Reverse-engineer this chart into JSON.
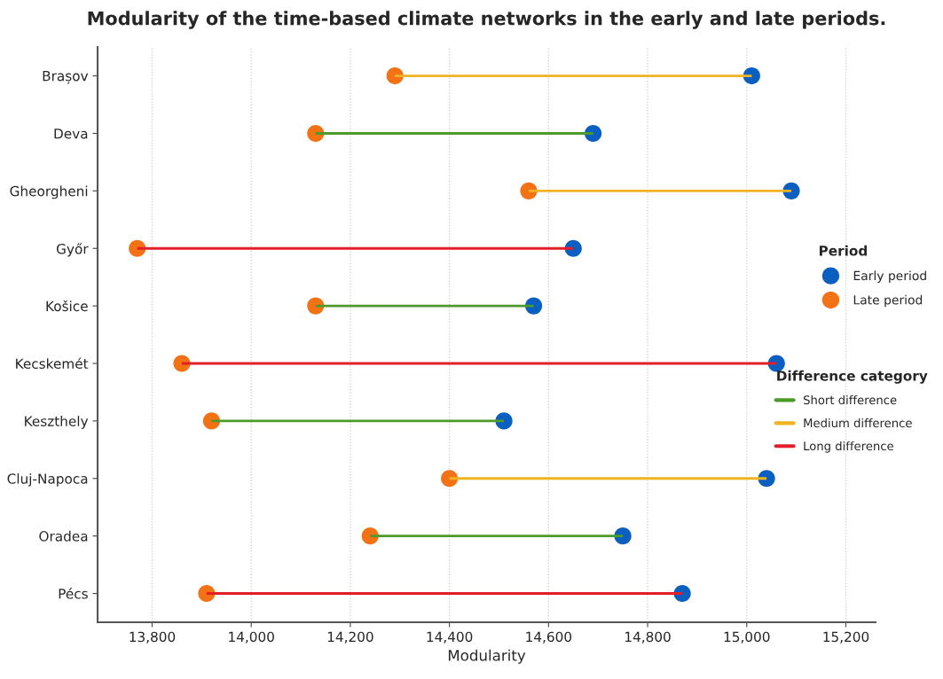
{
  "chart_data": {
    "type": "bar",
    "orientation": "horizontal",
    "title": "Modularity of the time-based climate networks in the early and late periods.",
    "xlabel": "Modularity",
    "legend_title": [
      "Period",
      "Difference category"
    ],
    "categories": [
      "Brașov",
      "Deva",
      "Gheorgheni",
      "Győr",
      "Košice",
      "Kecskemét",
      "Keszthely",
      "Cluj-Napoca",
      "Oradea",
      "Pécs"
    ],
    "series": [
      {
        "name": "Early period",
        "type": "scatter",
        "color": "#0a5fc0",
        "marker": "circle",
        "values": [
          15010,
          14690,
          15090,
          14650,
          14570,
          15060,
          14510,
          15040,
          14750,
          14870
        ]
      },
      {
        "name": "Late period",
        "type": "scatter",
        "color": "#f47216",
        "marker": "circle",
        "values": [
          14290,
          14130,
          14560,
          13770,
          14130,
          13860,
          13920,
          14400,
          14240,
          13910
        ]
      },
      {
        "name": "Short difference",
        "color": "#4c9a2a",
        "base": [
          null,
          14130,
          null,
          null,
          14130,
          null,
          13920,
          null,
          14240,
          null
        ],
        "values": [
          null,
          560,
          null,
          null,
          440,
          null,
          590,
          null,
          510,
          null
        ]
      },
      {
        "name": "Medium difference",
        "color": "#f0b323",
        "base": [
          14290,
          null,
          14560,
          null,
          null,
          null,
          null,
          14400,
          null,
          null
        ],
        "values": [
          720,
          null,
          530,
          null,
          null,
          null,
          null,
          640,
          null,
          null
        ]
      },
      {
        "name": "Long difference",
        "color": "#e41e26",
        "base": [
          null,
          null,
          null,
          13770,
          null,
          13860,
          null,
          null,
          null,
          13910
        ],
        "values": [
          null,
          null,
          null,
          880,
          null,
          1200,
          null,
          null,
          null,
          960
        ]
      }
    ],
    "xlim": [
      13690,
      15260
    ],
    "xticks": [
      {
        "value": 13800,
        "label": "13,800"
      },
      {
        "value": 14000,
        "label": "14,000"
      },
      {
        "value": 14200,
        "label": "14,200"
      },
      {
        "value": 14400,
        "label": "14,400"
      },
      {
        "value": 14600,
        "label": "14,600"
      },
      {
        "value": 14800,
        "label": "14,800"
      },
      {
        "value": 15000,
        "label": "15,000"
      },
      {
        "value": 15200,
        "label": "15,200"
      }
    ],
    "grid": "x",
    "legend": "right"
  }
}
